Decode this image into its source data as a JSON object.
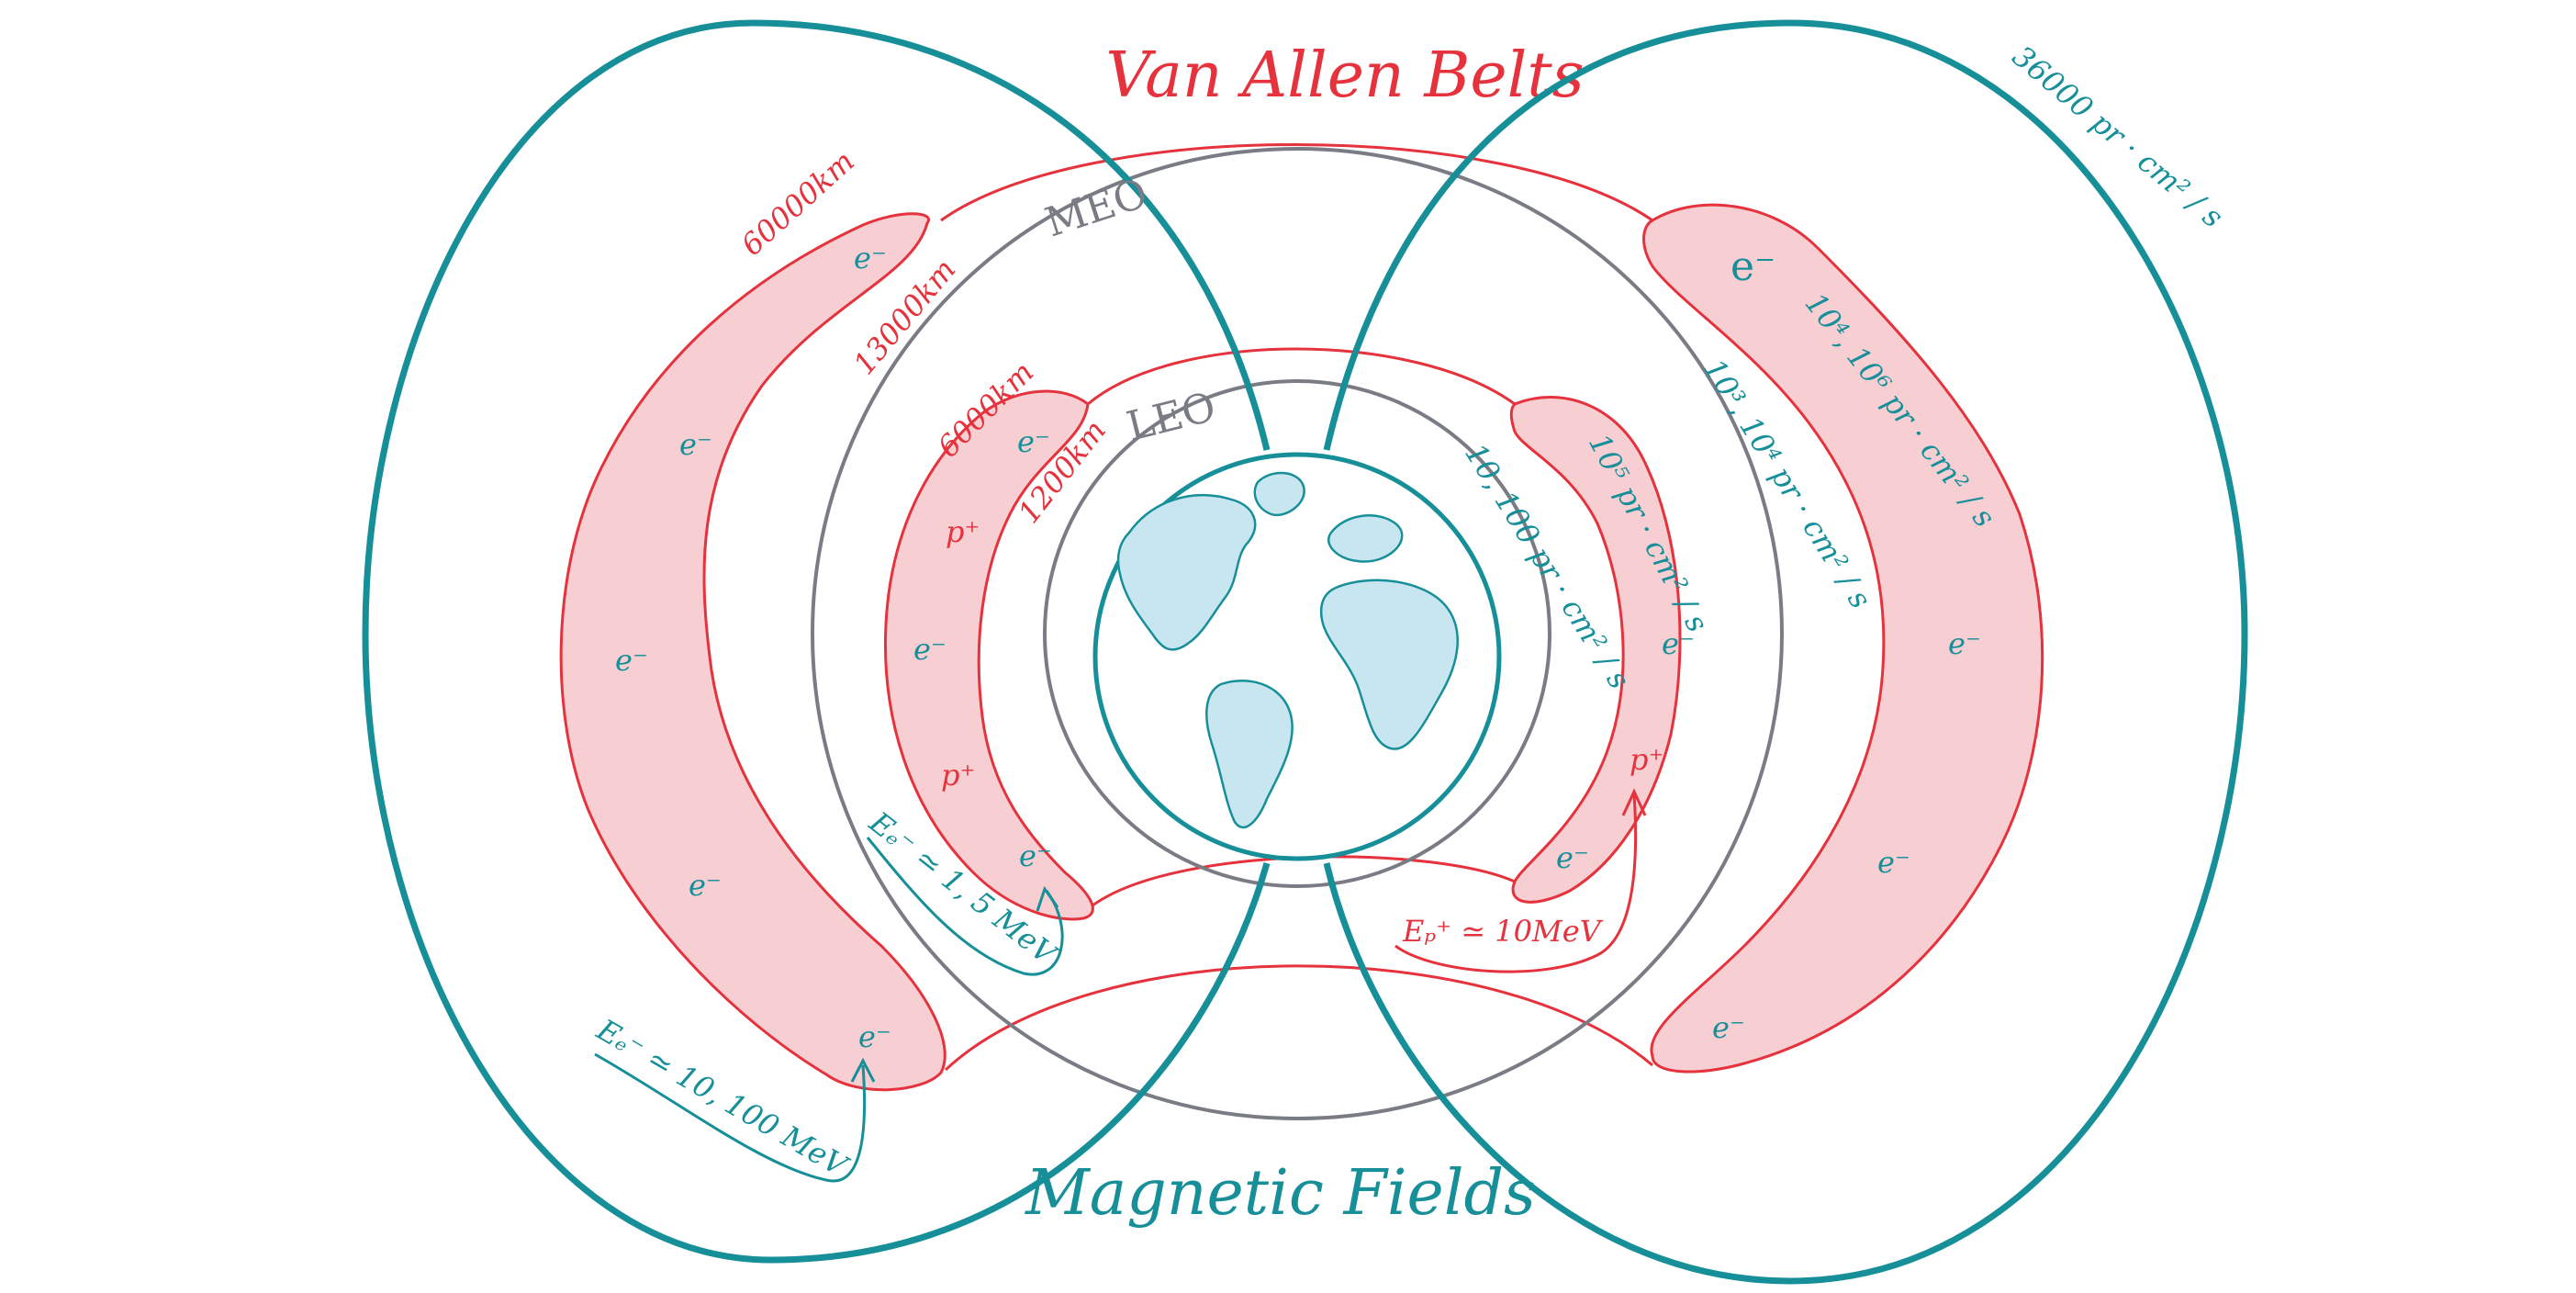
{
  "title": "Van Allen Belts",
  "footer_title": "Magnetic Fields",
  "colors": {
    "belt_red": "#e5323c",
    "belt_fill": "#f7cfd3",
    "field_teal": "#168f99",
    "orbit_gray": "#7a7c85",
    "earth_fill": "#c7e6ef"
  },
  "orbits": {
    "meo": "MEO",
    "leo": "LEO"
  },
  "altitudes": {
    "a60000": "60000km",
    "a13000": "13000km",
    "a6000": "6000km",
    "a1200": "1200km"
  },
  "particles": {
    "electron": "e⁻",
    "proton": "p⁺"
  },
  "fluxes": {
    "outer_top": "36000 pr · cm² / s",
    "outer_belt": "10⁴, 10⁶ pr · cm² / s",
    "meo_band": "10³, 10⁴ pr · cm² / s",
    "inner_belt": "10⁵ pr · cm² / s",
    "leo_band": "10, 100 pr · cm² / s"
  },
  "energies": {
    "outer_electrons": "Eₑ⁻ ≃ 10, 100 MeV",
    "inner_electrons": "Eₑ⁻ ≃ 1, 5 MeV",
    "inner_protons": "Eₚ⁺ ≃ 10MeV"
  }
}
